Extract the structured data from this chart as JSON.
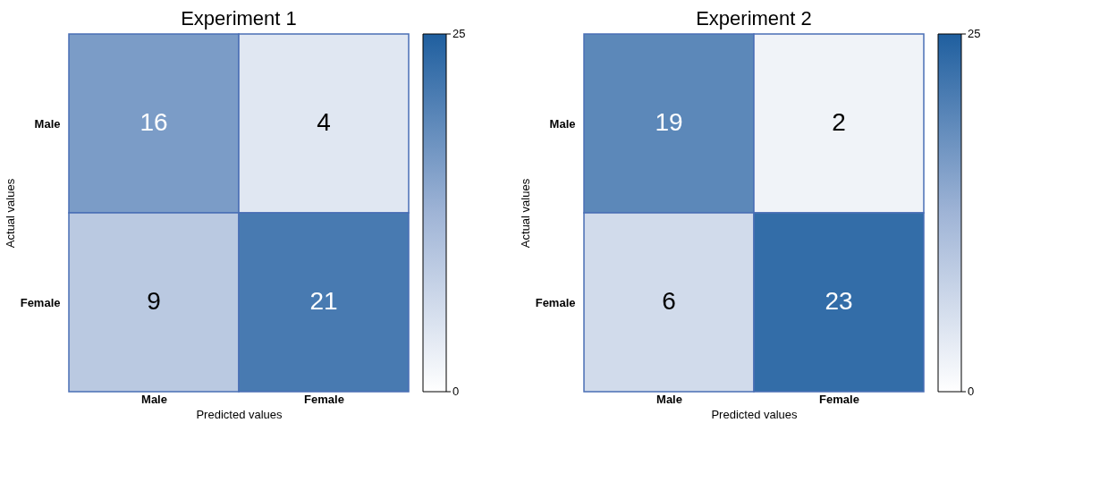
{
  "chart_data": [
    {
      "type": "heatmap",
      "title": "Experiment 1",
      "xlabel": "Predicted values",
      "ylabel": "Actual values",
      "categories": [
        "Male",
        "Female"
      ],
      "y_categories": [
        "Male",
        "Female"
      ],
      "cells": [
        [
          16,
          4
        ],
        [
          9,
          21
        ]
      ],
      "clim": [
        0,
        25
      ],
      "cticks": [
        0,
        25
      ],
      "data_labels": true
    },
    {
      "type": "heatmap",
      "title": "Experiment 2",
      "xlabel": "Predicted values",
      "ylabel": "Actual values",
      "categories": [
        "Male",
        "Female"
      ],
      "y_categories": [
        "Male",
        "Female"
      ],
      "cells": [
        [
          19,
          2
        ],
        [
          6,
          23
        ]
      ],
      "clim": [
        0,
        25
      ],
      "cticks": [
        0,
        25
      ],
      "data_labels": true
    }
  ]
}
